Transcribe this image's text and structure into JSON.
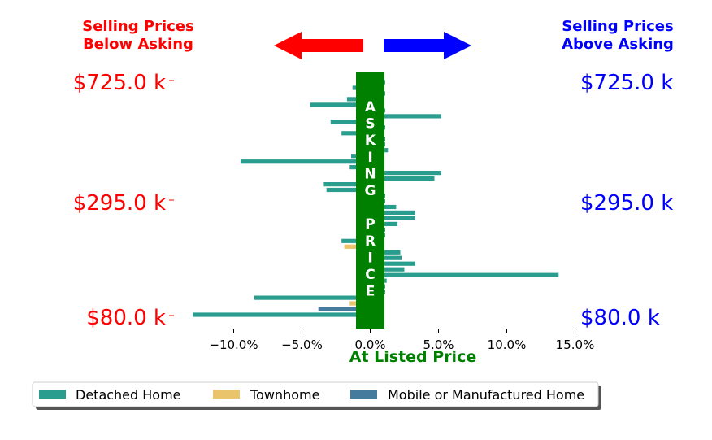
{
  "chart_data": {
    "type": "bar",
    "orientation": "horizontal",
    "title": "",
    "xlabel": "At Listed Price",
    "header_left": [
      "Selling Prices",
      "Below Asking"
    ],
    "header_right": [
      "Selling Prices",
      "Above Asking"
    ],
    "center_band_text": [
      "A",
      "S",
      "K",
      "I",
      "N",
      "G",
      "",
      "P",
      "R",
      "I",
      "C",
      "E"
    ],
    "xlim": [
      -13.5,
      15.5
    ],
    "xticks": [
      -10,
      -5,
      0,
      5,
      10,
      15
    ],
    "xtick_labels": [
      "−10.0%",
      "−5.0%",
      "0.0%",
      "5.0%",
      "10.0%",
      "15.0%"
    ],
    "left_price_labels": [
      "$725.0 k",
      "$295.0 k",
      "$80.0 k"
    ],
    "right_price_labels": [
      "$725.0 k",
      "$295.0 k",
      "$80.0 k"
    ],
    "legend": [
      "Detached Home",
      "Townhome",
      "Mobile or Manufactured Home"
    ],
    "colors": {
      "Detached Home": "#2a9d8f",
      "Townhome": "#e9c46a",
      "Mobile or Manufactured Home": "#457b9d",
      "band": "#008000",
      "below": "#ff0000",
      "above": "#0000ff",
      "xlabel": "#008000"
    },
    "bars": [
      {
        "value": 1.1,
        "type": "Detached Home"
      },
      {
        "value": -1.3,
        "type": "Detached Home"
      },
      {
        "value": 1.1,
        "type": "Detached Home"
      },
      {
        "value": -1.7,
        "type": "Detached Home"
      },
      {
        "value": -4.4,
        "type": "Detached Home"
      },
      {
        "value": 1.1,
        "type": "Detached Home"
      },
      {
        "value": 5.2,
        "type": "Detached Home"
      },
      {
        "value": -2.9,
        "type": "Detached Home"
      },
      {
        "value": 1.1,
        "type": "Detached Home"
      },
      {
        "value": -2.1,
        "type": "Detached Home"
      },
      {
        "value": 1.1,
        "type": "Detached Home"
      },
      {
        "value": 1.1,
        "type": "Detached Home"
      },
      {
        "value": 1.3,
        "type": "Detached Home"
      },
      {
        "value": -1.4,
        "type": "Detached Home"
      },
      {
        "value": -9.5,
        "type": "Detached Home"
      },
      {
        "value": -1.5,
        "type": "Detached Home"
      },
      {
        "value": 5.2,
        "type": "Detached Home"
      },
      {
        "value": 4.7,
        "type": "Detached Home"
      },
      {
        "value": -3.4,
        "type": "Detached Home"
      },
      {
        "value": -3.2,
        "type": "Detached Home"
      },
      {
        "value": 1.1,
        "type": "Detached Home"
      },
      {
        "value": 1.1,
        "type": "Detached Home"
      },
      {
        "value": 1.9,
        "type": "Detached Home"
      },
      {
        "value": 3.3,
        "type": "Detached Home"
      },
      {
        "value": 3.3,
        "type": "Detached Home"
      },
      {
        "value": 2.0,
        "type": "Detached Home"
      },
      {
        "value": 1.1,
        "type": "Detached Home"
      },
      {
        "value": 1.1,
        "type": "Detached Home"
      },
      {
        "value": -2.1,
        "type": "Detached Home"
      },
      {
        "value": -1.9,
        "type": "Townhome"
      },
      {
        "value": 2.2,
        "type": "Detached Home"
      },
      {
        "value": 2.3,
        "type": "Detached Home"
      },
      {
        "value": 3.3,
        "type": "Detached Home"
      },
      {
        "value": 2.5,
        "type": "Detached Home"
      },
      {
        "value": 13.8,
        "type": "Detached Home"
      },
      {
        "value": 1.2,
        "type": "Detached Home"
      },
      {
        "value": 1.1,
        "type": "Detached Home"
      },
      {
        "value": 1.1,
        "type": "Detached Home"
      },
      {
        "value": -8.5,
        "type": "Detached Home"
      },
      {
        "value": -1.5,
        "type": "Townhome"
      },
      {
        "value": -3.8,
        "type": "Mobile or Manufactured Home"
      },
      {
        "value": -13.0,
        "type": "Detached Home"
      }
    ]
  }
}
